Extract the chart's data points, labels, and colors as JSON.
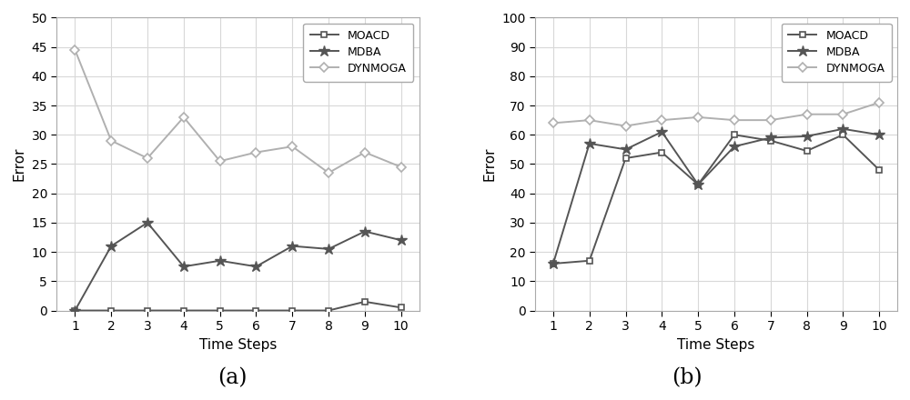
{
  "time_steps": [
    1,
    2,
    3,
    4,
    5,
    6,
    7,
    8,
    9,
    10
  ],
  "plot_a": {
    "MOACD": [
      0,
      0,
      0,
      0,
      0,
      0,
      0,
      0,
      1.5,
      0.5
    ],
    "MDBA": [
      0,
      11,
      15,
      7.5,
      8.5,
      7.5,
      11,
      10.5,
      13.5,
      12
    ],
    "DYNMOGA": [
      44.5,
      29,
      26,
      33,
      25.5,
      27,
      28,
      23.5,
      27,
      24.5
    ]
  },
  "plot_b": {
    "MOACD": [
      16,
      17,
      52,
      54,
      43,
      60,
      58,
      54.5,
      60,
      48
    ],
    "MDBA": [
      16,
      57,
      55,
      61,
      43,
      56,
      59,
      59.5,
      62,
      60
    ],
    "DYNMOGA": [
      64,
      65,
      63,
      65,
      66,
      65,
      65,
      67,
      67,
      71
    ]
  },
  "ylim_a": [
    0,
    50
  ],
  "ylim_b": [
    0,
    100
  ],
  "yticks_a": [
    0,
    5,
    10,
    15,
    20,
    25,
    30,
    35,
    40,
    45,
    50
  ],
  "yticks_b": [
    0,
    10,
    20,
    30,
    40,
    50,
    60,
    70,
    80,
    90,
    100
  ],
  "xlabel": "Time Steps",
  "ylabel": "Error",
  "label_a": "(a)",
  "label_b": "(b)",
  "legend_labels": [
    "MOACD",
    "MDBA",
    "DYNMOGA"
  ],
  "line_color_MOACD": "#555555",
  "line_color_MDBA": "#555555",
  "line_color_DYNMOGA": "#b0b0b0",
  "marker_MOACD": "s",
  "marker_MDBA": "*",
  "marker_DYNMOGA": "D",
  "grid_color": "#d8d8d8",
  "bg_color": "#ffffff",
  "fontsize_label": 11,
  "fontsize_tick": 10,
  "fontsize_legend": 9,
  "fontsize_caption": 17,
  "linewidth": 1.4,
  "markersize_sq": 5,
  "markersize_star": 9,
  "markersize_dia": 5
}
